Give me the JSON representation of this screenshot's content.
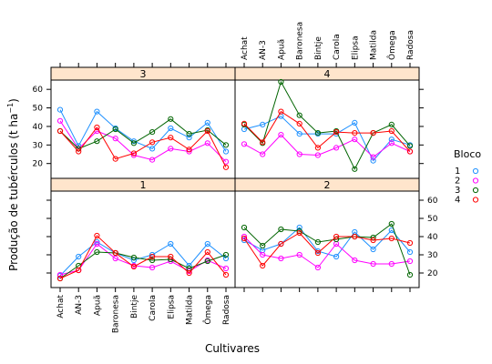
{
  "chart_data": {
    "type": "line",
    "xlabel": "Cultivares",
    "ylabel_main": "Produção de tubérculos (t ha",
    "ylabel_sup": "−1",
    "ylabel_close": ")",
    "categories": [
      "Achat",
      "AN-3",
      "Apuã",
      "Baronesa",
      "Bintje",
      "Carola",
      "Elipsa",
      "Matilda",
      "Ômega",
      "Radosa"
    ],
    "y_ticks": [
      20,
      30,
      40,
      50,
      60
    ],
    "ylim": [
      12,
      65
    ],
    "legend": {
      "title": "Bloco",
      "placement": "right",
      "items": [
        {
          "label": "1",
          "color": "#1e90ff"
        },
        {
          "label": "2",
          "color": "#ff00ff"
        },
        {
          "label": "3",
          "color": "#006400"
        },
        {
          "label": "4",
          "color": "#ff0000"
        }
      ]
    },
    "panels": [
      {
        "label": "1",
        "series": [
          {
            "name": "1",
            "values": [
              18.5,
              29,
              37,
              31,
              27,
              30,
              36,
              24,
              36,
              28
            ]
          },
          {
            "name": "2",
            "values": [
              19,
              21.5,
              36,
              28,
              24,
              23,
              26.5,
              21,
              27,
              22.5
            ]
          },
          {
            "name": "3",
            "values": [
              17,
              24,
              31.5,
              31,
              28.5,
              27,
              27.5,
              22.5,
              26.5,
              30
            ]
          },
          {
            "name": "4",
            "values": [
              17,
              21.5,
              40.5,
              31,
              23.5,
              29,
              29,
              20,
              31.5,
              19
            ]
          }
        ]
      },
      {
        "label": "2",
        "series": [
          {
            "name": "1",
            "values": [
              38,
              32.5,
              36,
              45,
              32,
              29,
              42.5,
              33,
              43.5,
              31.5
            ]
          },
          {
            "name": "2",
            "values": [
              40,
              30,
              28,
              30,
              23,
              36,
              27,
              25,
              25,
              26.5
            ]
          },
          {
            "name": "3",
            "values": [
              45,
              35,
              44,
              43,
              37,
              38.5,
              40,
              39.5,
              47,
              19
            ]
          },
          {
            "name": "4",
            "values": [
              39,
              24,
              36,
              42,
              31,
              40,
              40,
              38,
              39,
              36.5
            ]
          }
        ]
      },
      {
        "label": "3",
        "series": [
          {
            "name": "1",
            "values": [
              49,
              29.5,
              48,
              39,
              32,
              28,
              39,
              34,
              42,
              26.5
            ]
          },
          {
            "name": "2",
            "values": [
              43,
              28,
              37.5,
              33.5,
              24.5,
              22,
              28,
              26.5,
              31,
              21
            ]
          },
          {
            "name": "3",
            "values": [
              37.5,
              28,
              32,
              38.5,
              31,
              37,
              44,
              36,
              38,
              30
            ]
          },
          {
            "name": "4",
            "values": [
              37.5,
              26.5,
              39.5,
              22.5,
              25.5,
              31.5,
              34,
              27.5,
              37.5,
              18
            ]
          }
        ]
      },
      {
        "label": "4",
        "series": [
          {
            "name": "1",
            "values": [
              38.5,
              41,
              45.5,
              36,
              36,
              36,
              42,
              21.5,
              33,
              30
            ]
          },
          {
            "name": "2",
            "values": [
              30.5,
              25,
              35.5,
              25,
              24.5,
              28.5,
              33,
              23.5,
              31,
              26.5
            ]
          },
          {
            "name": "3",
            "values": [
              41,
              31,
              64,
              46,
              36.5,
              37.5,
              17,
              36.5,
              41,
              29.5
            ]
          },
          {
            "name": "4",
            "values": [
              41.5,
              31.5,
              48,
              41.5,
              28.5,
              37,
              36.5,
              36.5,
              37.5,
              26.5
            ]
          }
        ]
      }
    ]
  }
}
